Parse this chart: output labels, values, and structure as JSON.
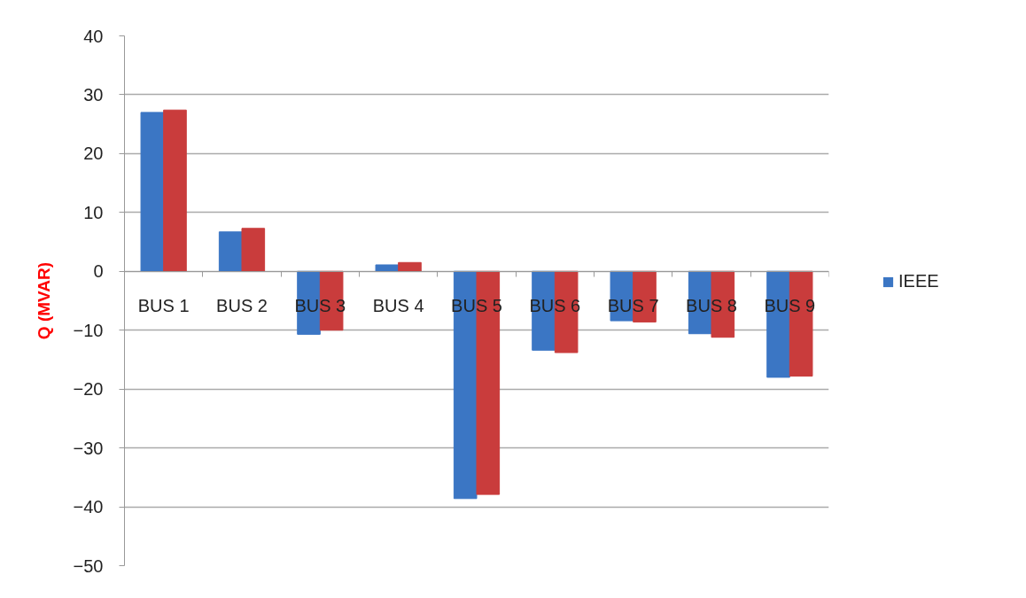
{
  "chart_data": {
    "type": "bar",
    "ylabel": "Q (MVAR)",
    "categories": [
      "BUS 1",
      "BUS 2",
      "BUS 3",
      "BUS 4",
      "BUS 5",
      "BUS 6",
      "BUS 7",
      "BUS 8",
      "BUS 9"
    ],
    "series": [
      {
        "name": "IEEE",
        "color": "#3b76c4",
        "values": [
          27.0,
          6.7,
          -10.7,
          1.1,
          -38.6,
          -13.4,
          -8.4,
          -10.6,
          -18.0
        ]
      },
      {
        "color": "#c93c3c",
        "values": [
          27.4,
          7.3,
          -10.0,
          1.5,
          -37.9,
          -13.8,
          -8.6,
          -11.2,
          -17.8
        ]
      }
    ],
    "ylim": [
      -50,
      40
    ],
    "yticks": [
      -50,
      -40,
      -30,
      -20,
      -10,
      0,
      10,
      20,
      30,
      40
    ],
    "grid": "y",
    "legend": "right"
  }
}
